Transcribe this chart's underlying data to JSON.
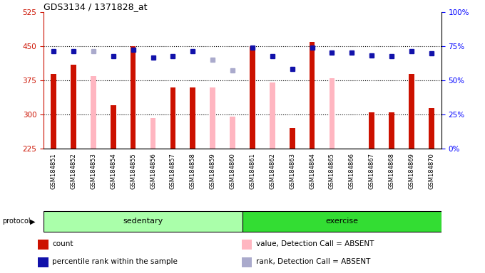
{
  "title": "GDS3134 / 1371828_at",
  "samples": [
    "GSM184851",
    "GSM184852",
    "GSM184853",
    "GSM184854",
    "GSM184855",
    "GSM184856",
    "GSM184857",
    "GSM184858",
    "GSM184859",
    "GSM184860",
    "GSM184861",
    "GSM184862",
    "GSM184863",
    "GSM184864",
    "GSM184865",
    "GSM184866",
    "GSM184867",
    "GSM184868",
    "GSM184869",
    "GSM184870"
  ],
  "count_red": [
    390,
    410,
    null,
    320,
    450,
    null,
    360,
    360,
    null,
    null,
    450,
    null,
    270,
    460,
    null,
    null,
    305,
    305,
    390,
    315
  ],
  "count_pink": [
    null,
    null,
    385,
    null,
    null,
    null,
    null,
    null,
    360,
    295,
    null,
    370,
    null,
    null,
    null,
    null,
    null,
    null,
    null,
    null
  ],
  "absent_red": [
    null,
    null,
    null,
    null,
    null,
    293,
    null,
    null,
    null,
    null,
    null,
    null,
    null,
    null,
    380,
    null,
    null,
    null,
    null,
    null
  ],
  "percentile_blue": [
    440,
    440,
    null,
    428,
    443,
    425,
    428,
    440,
    null,
    null,
    448,
    428,
    400,
    447,
    437,
    437,
    430,
    428,
    440,
    435
  ],
  "percentile_lightblue": [
    null,
    null,
    440,
    null,
    null,
    null,
    null,
    null,
    420,
    397,
    null,
    null,
    null,
    null,
    null,
    null,
    null,
    null,
    null,
    null
  ],
  "protocol_groups": [
    {
      "label": "sedentary",
      "start": 0,
      "end": 10
    },
    {
      "label": "exercise",
      "start": 10,
      "end": 20
    }
  ],
  "ylim_left": [
    225,
    525
  ],
  "ylim_right": [
    0,
    100
  ],
  "yticks_left": [
    225,
    300,
    375,
    450,
    525
  ],
  "yticks_right": [
    0,
    25,
    50,
    75,
    100
  ],
  "ytick_labels_right": [
    "0%",
    "25%",
    "50%",
    "75%",
    "100%"
  ],
  "hgrid_vals": [
    300,
    375,
    450
  ],
  "bar_color_red": "#CC1100",
  "bar_color_pink": "#FFB6C1",
  "dot_color_blue": "#1111AA",
  "dot_color_lightblue": "#AAAACC",
  "bg_gray": "#D3D3D3",
  "bg_white": "#FFFFFF",
  "green_light": "#AAFFAA",
  "green_bright": "#33DD33",
  "legend_items": [
    {
      "color": "#CC1100",
      "label": "count"
    },
    {
      "color": "#1111AA",
      "label": "percentile rank within the sample"
    },
    {
      "color": "#FFB6C1",
      "label": "value, Detection Call = ABSENT"
    },
    {
      "color": "#AAAACC",
      "label": "rank, Detection Call = ABSENT"
    }
  ]
}
